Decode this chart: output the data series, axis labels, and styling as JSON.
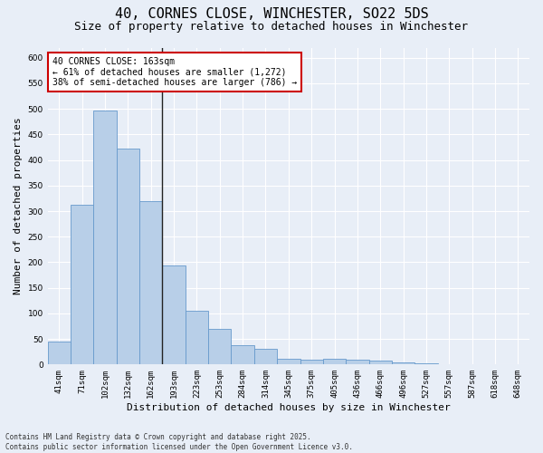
{
  "title_line1": "40, CORNES CLOSE, WINCHESTER, SO22 5DS",
  "title_line2": "Size of property relative to detached houses in Winchester",
  "xlabel": "Distribution of detached houses by size in Winchester",
  "ylabel": "Number of detached properties",
  "categories": [
    "41sqm",
    "71sqm",
    "102sqm",
    "132sqm",
    "162sqm",
    "193sqm",
    "223sqm",
    "253sqm",
    "284sqm",
    "314sqm",
    "345sqm",
    "375sqm",
    "405sqm",
    "436sqm",
    "466sqm",
    "496sqm",
    "527sqm",
    "557sqm",
    "587sqm",
    "618sqm",
    "648sqm"
  ],
  "values": [
    45,
    312,
    497,
    422,
    320,
    193,
    105,
    70,
    37,
    30,
    12,
    10,
    12,
    10,
    7,
    4,
    2,
    0,
    1,
    0,
    1
  ],
  "bar_color": "#b8cfe8",
  "bar_edge_color": "#6699cc",
  "background_color": "#e8eef7",
  "grid_color": "#ffffff",
  "vline_x": 4.5,
  "vline_color": "#222222",
  "annotation_text": "40 CORNES CLOSE: 163sqm\n← 61% of detached houses are smaller (1,272)\n38% of semi-detached houses are larger (786) →",
  "annotation_box_color": "#ffffff",
  "annotation_box_edge": "#cc0000",
  "ylim": [
    0,
    620
  ],
  "yticks": [
    0,
    50,
    100,
    150,
    200,
    250,
    300,
    350,
    400,
    450,
    500,
    550,
    600
  ],
  "footnote": "Contains HM Land Registry data © Crown copyright and database right 2025.\nContains public sector information licensed under the Open Government Licence v3.0.",
  "title_fontsize": 11,
  "subtitle_fontsize": 9,
  "tick_fontsize": 6.5,
  "label_fontsize": 8,
  "annot_fontsize": 7,
  "footnote_fontsize": 5.5
}
